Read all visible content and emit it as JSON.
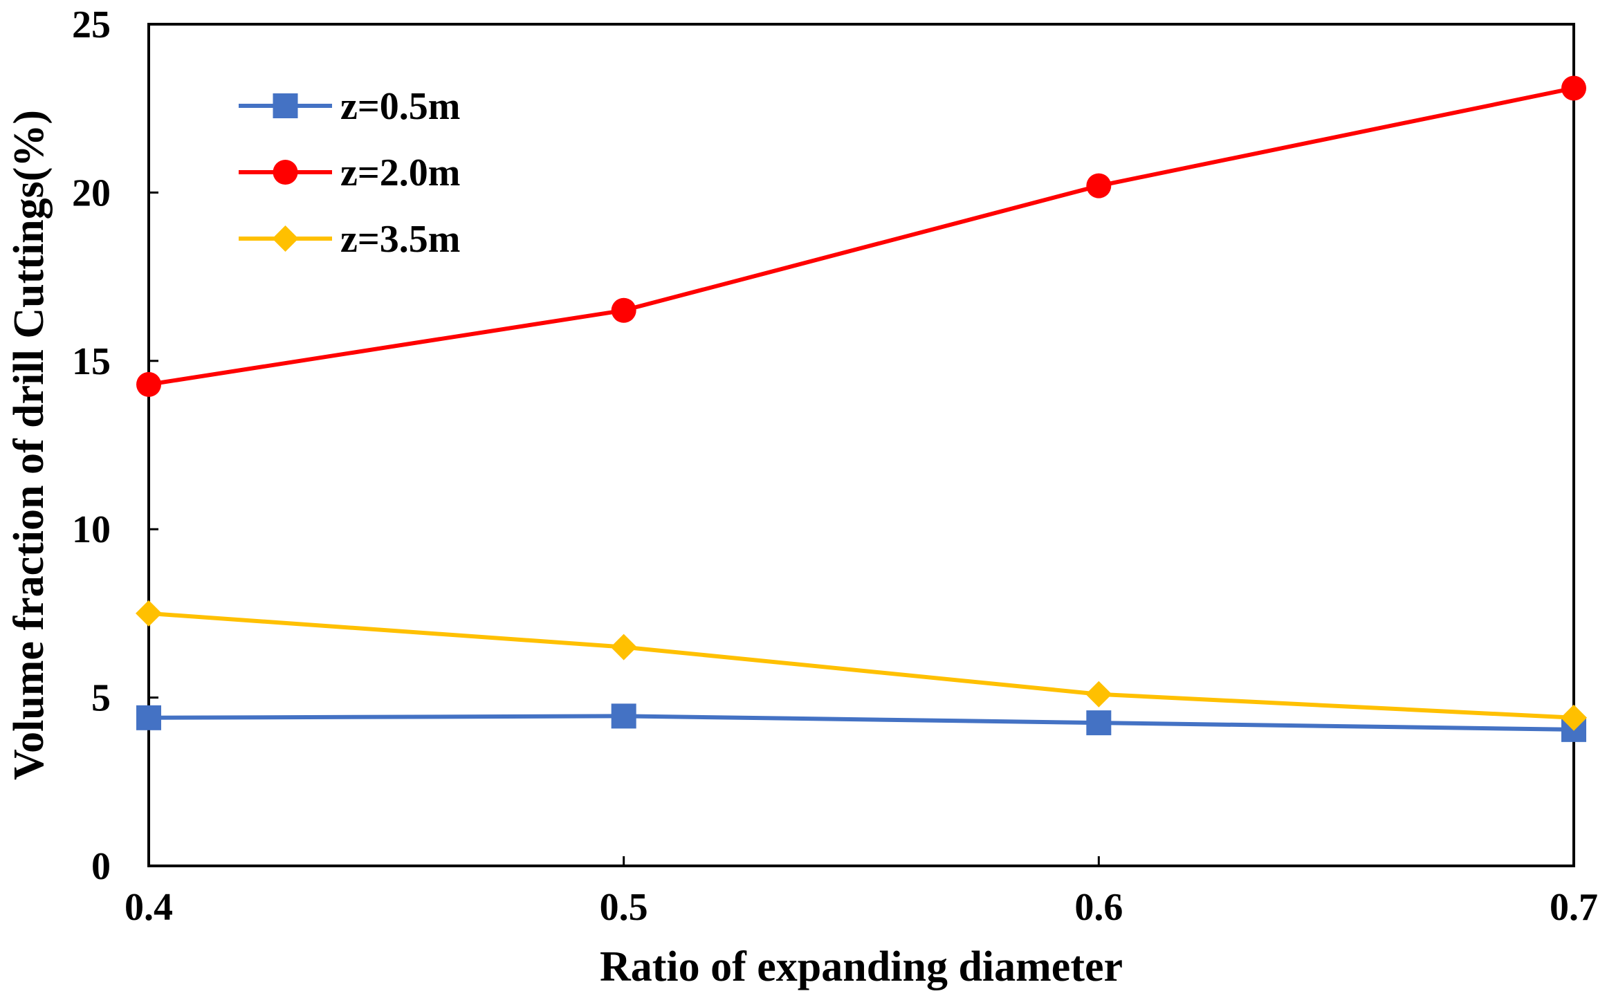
{
  "chart_data": {
    "type": "line",
    "title": "",
    "xlabel": "Ratio of expanding diameter",
    "ylabel": "Volume fraction of drill Cuttings(%)",
    "x": [
      0.4,
      0.5,
      0.6,
      0.7
    ],
    "x_tick_labels": [
      "0.4",
      "0.5",
      "0.6",
      "0.7"
    ],
    "y_ticks": [
      0,
      5,
      10,
      15,
      20,
      25
    ],
    "xlim": [
      0.4,
      0.7
    ],
    "ylim": [
      0,
      25
    ],
    "grid": false,
    "legend_position": "top-left",
    "series": [
      {
        "name": "z=0.5m",
        "color": "#4472C4",
        "marker": "square",
        "values": [
          4.4,
          4.45,
          4.25,
          4.05
        ]
      },
      {
        "name": "z=2.0m",
        "color": "#FF0000",
        "marker": "circle",
        "values": [
          14.3,
          16.5,
          20.2,
          23.1
        ]
      },
      {
        "name": "z=3.5m",
        "color": "#FFC000",
        "marker": "diamond",
        "values": [
          7.5,
          6.5,
          5.1,
          4.4
        ]
      }
    ]
  }
}
